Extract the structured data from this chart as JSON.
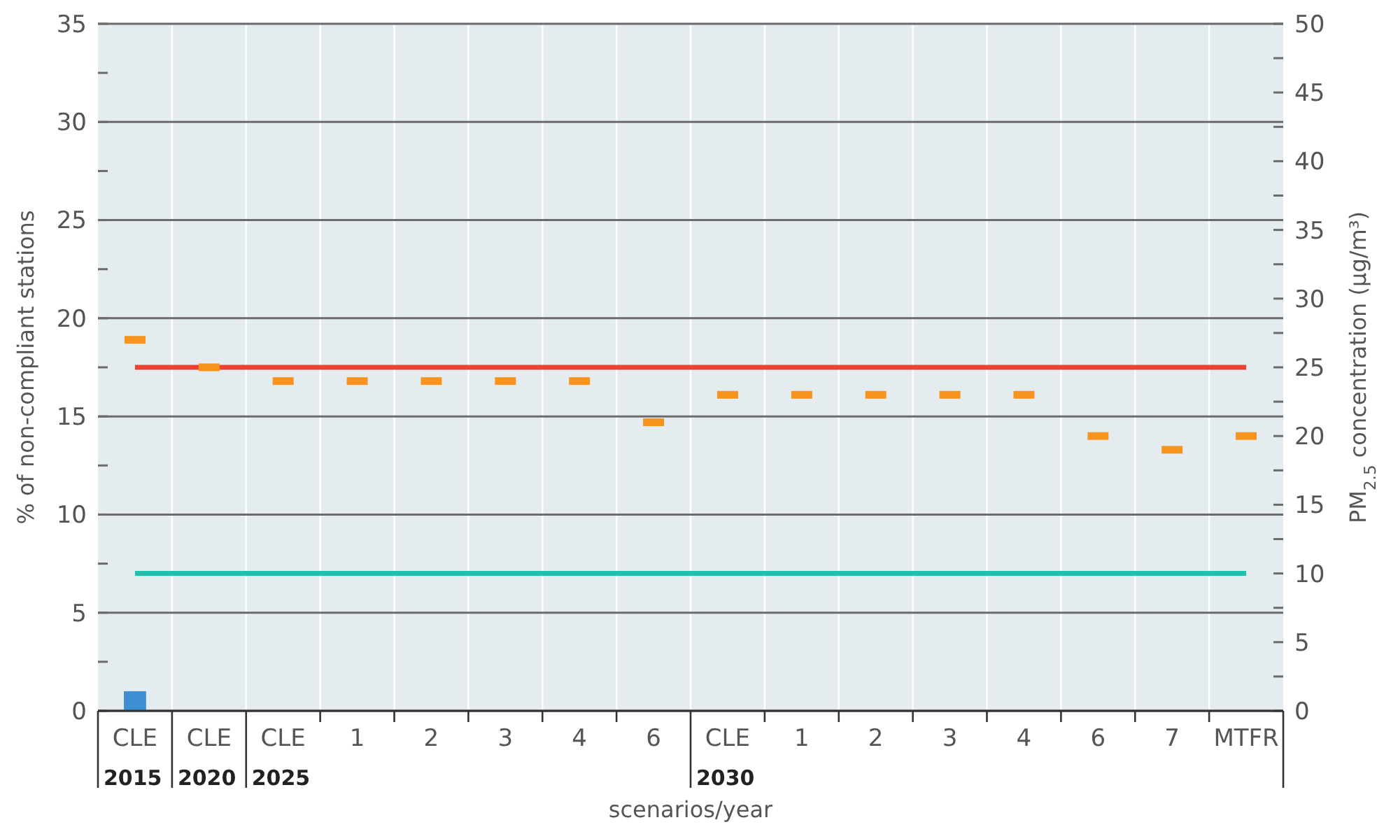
{
  "chart_data": {
    "type": "bar",
    "xlabel": "scenarios/year",
    "ylabel": "% of non-compliant stations",
    "y2label": "PM$_{2.5}$ concentration (µg/m³)",
    "categories": [
      "CLE",
      "CLE",
      "CLE",
      "1",
      "2",
      "3",
      "4",
      "6",
      "CLE",
      "1",
      "2",
      "3",
      "4",
      "6",
      "7",
      "MTFR"
    ],
    "series": [
      {
        "color": "#3d8fd1",
        "values": [
          1,
          null,
          null,
          null,
          null,
          null,
          null,
          null,
          null,
          null,
          null,
          null,
          null,
          null,
          null,
          null
        ]
      },
      {
        "type": "scatter",
        "axis": "y2",
        "color": "#f7941d",
        "values": [
          27,
          25,
          24,
          24,
          24,
          24,
          24,
          21,
          23,
          23,
          23,
          23,
          23,
          20,
          19,
          20
        ]
      }
    ],
    "ylim": [
      0,
      35
    ],
    "yticks": [
      0,
      {
        "value": 2.5,
        "label": null
      },
      5,
      {
        "value": 7.5,
        "label": null
      },
      10,
      {
        "value": 12.5,
        "label": null
      },
      15,
      {
        "value": 17.5,
        "label": null
      },
      20,
      {
        "value": 22.5,
        "label": null
      },
      25,
      {
        "value": 27.5,
        "label": null
      },
      30,
      {
        "value": 32.5,
        "label": null
      },
      35
    ],
    "y2lim": [
      0,
      50
    ],
    "y2ticks": [
      0,
      {
        "value": 2.5,
        "label": null
      },
      5,
      {
        "value": 7.5,
        "label": null
      },
      10,
      {
        "value": 12.5,
        "label": null
      },
      15,
      {
        "value": 17.5,
        "label": null
      },
      20,
      {
        "value": 22.5,
        "label": null
      },
      25,
      {
        "value": 27.5,
        "label": null
      },
      30,
      {
        "value": 32.5,
        "label": null
      },
      35,
      {
        "value": 37.5,
        "label": null
      },
      40,
      {
        "value": 42.5,
        "label": null
      },
      45,
      {
        "value": 47.5,
        "label": null
      },
      50
    ],
    "ref_lines": [
      {
        "axis": "y2",
        "value": 25,
        "color": "#ee4130"
      },
      {
        "axis": "y2",
        "value": 10,
        "color": "#21bfae"
      }
    ],
    "annotations": [
      "2015",
      "2020",
      "2025",
      "2030"
    ],
    "grid": true
  }
}
